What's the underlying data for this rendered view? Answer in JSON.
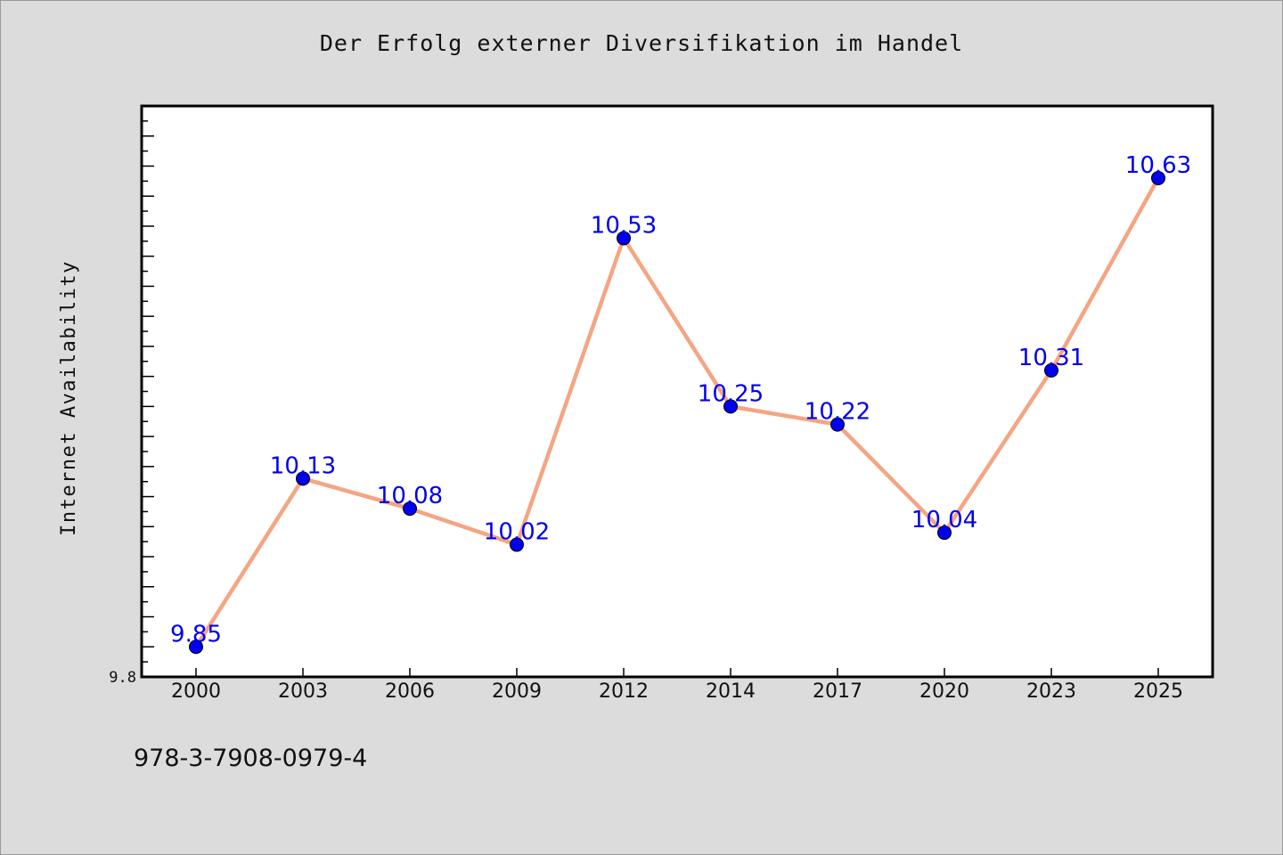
{
  "header": {
    "title": "Der Erfolg externer Diversifikation im Handel"
  },
  "footer": {
    "isbn": "978-3-7908-0979-4"
  },
  "colors": {
    "line": "#f4a582",
    "marker": "#0000ee",
    "label": "#0000ee",
    "background": "#dcdcdc",
    "plot_bg": "#ffffff"
  },
  "chart_data": {
    "type": "line",
    "title": "Der Erfolg externer Diversifikation im Handel",
    "xlabel": "",
    "ylabel": "Internet Availability",
    "categories": [
      "2000",
      "2003",
      "2006",
      "2009",
      "2012",
      "2014",
      "2017",
      "2020",
      "2023",
      "2025"
    ],
    "series": [
      {
        "values": [
          9.85,
          10.13,
          10.08,
          10.02,
          10.53,
          10.25,
          10.22,
          10.04,
          10.31,
          10.63
        ]
      }
    ],
    "data_labels": [
      "9.85",
      "10.13",
      "10.08",
      "10.02",
      "10.53",
      "10.25",
      "10.22",
      "10.04",
      "10.31",
      "10.63"
    ],
    "ylim": [
      9.8,
      10.75
    ],
    "y_tick_labels": [
      "9.8"
    ],
    "grid": false,
    "legend": "none"
  }
}
